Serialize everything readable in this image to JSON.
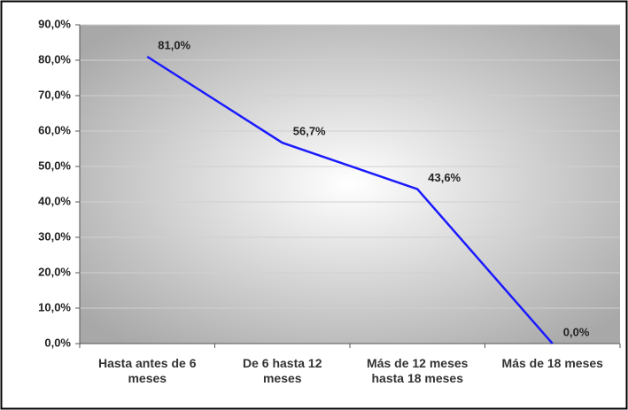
{
  "chart_data": {
    "type": "line",
    "categories": [
      "Hasta antes de 6 meses",
      "De 6 hasta 12 meses",
      "Más de 12 meses hasta 18 meses",
      "Más de 18 meses"
    ],
    "series": [
      {
        "color": "#1a1aff",
        "values": [
          81.0,
          56.7,
          43.6,
          0.0
        ],
        "value_labels": [
          "81,0%",
          "56,7%",
          "43,6%",
          "0,0%"
        ]
      }
    ],
    "ylim": [
      0,
      90
    ],
    "yticks": [
      {
        "value": 0,
        "label": "0,0%"
      },
      {
        "value": 10,
        "label": "10,0%"
      },
      {
        "value": 20,
        "label": "20,0%"
      },
      {
        "value": 30,
        "label": "30,0%"
      },
      {
        "value": 40,
        "label": "40,0%"
      },
      {
        "value": 50,
        "label": "50,0%"
      },
      {
        "value": 60,
        "label": "60,0%"
      },
      {
        "value": 70,
        "label": "70,0%"
      },
      {
        "value": 80,
        "label": "80,0%"
      },
      {
        "value": 90,
        "label": "90,0%"
      }
    ],
    "grid": true
  }
}
